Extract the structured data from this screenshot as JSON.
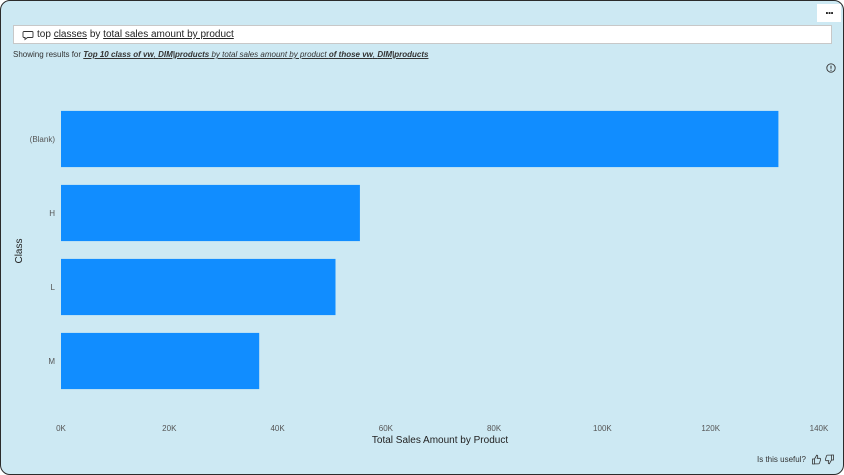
{
  "toolbar": {
    "more_label": "..."
  },
  "qa": {
    "question_parts": [
      {
        "text": "top ",
        "underline": false
      },
      {
        "text": "classes",
        "underline": true
      },
      {
        "text": " by ",
        "underline": false
      },
      {
        "text": "total sales amount by product",
        "underline": true
      }
    ]
  },
  "restatement": {
    "prefix": "Showing results for ",
    "p1": "Top 10 class of vw",
    "p2": ", ",
    "p3": "DIM|products",
    "p4": " by total sales amount by product ",
    "p5": "of those vw",
    "p6": ", ",
    "p7": "DIM|products"
  },
  "chart_data": {
    "type": "bar",
    "orientation": "horizontal",
    "categories": [
      "(Blank)",
      "H",
      "L",
      "M"
    ],
    "values": [
      132500,
      55200,
      50700,
      36600
    ],
    "xlabel": "Total Sales Amount by Product",
    "ylabel": "Class",
    "xlim": [
      0,
      140000
    ],
    "xticks": [
      "0K",
      "20K",
      "40K",
      "60K",
      "80K",
      "100K",
      "120K",
      "140K"
    ],
    "bar_color": "#118dff",
    "grid": false
  },
  "footer": {
    "useful_label": "Is this useful?"
  },
  "colors": {
    "background": "#cde9f3",
    "bar": "#118dff"
  }
}
